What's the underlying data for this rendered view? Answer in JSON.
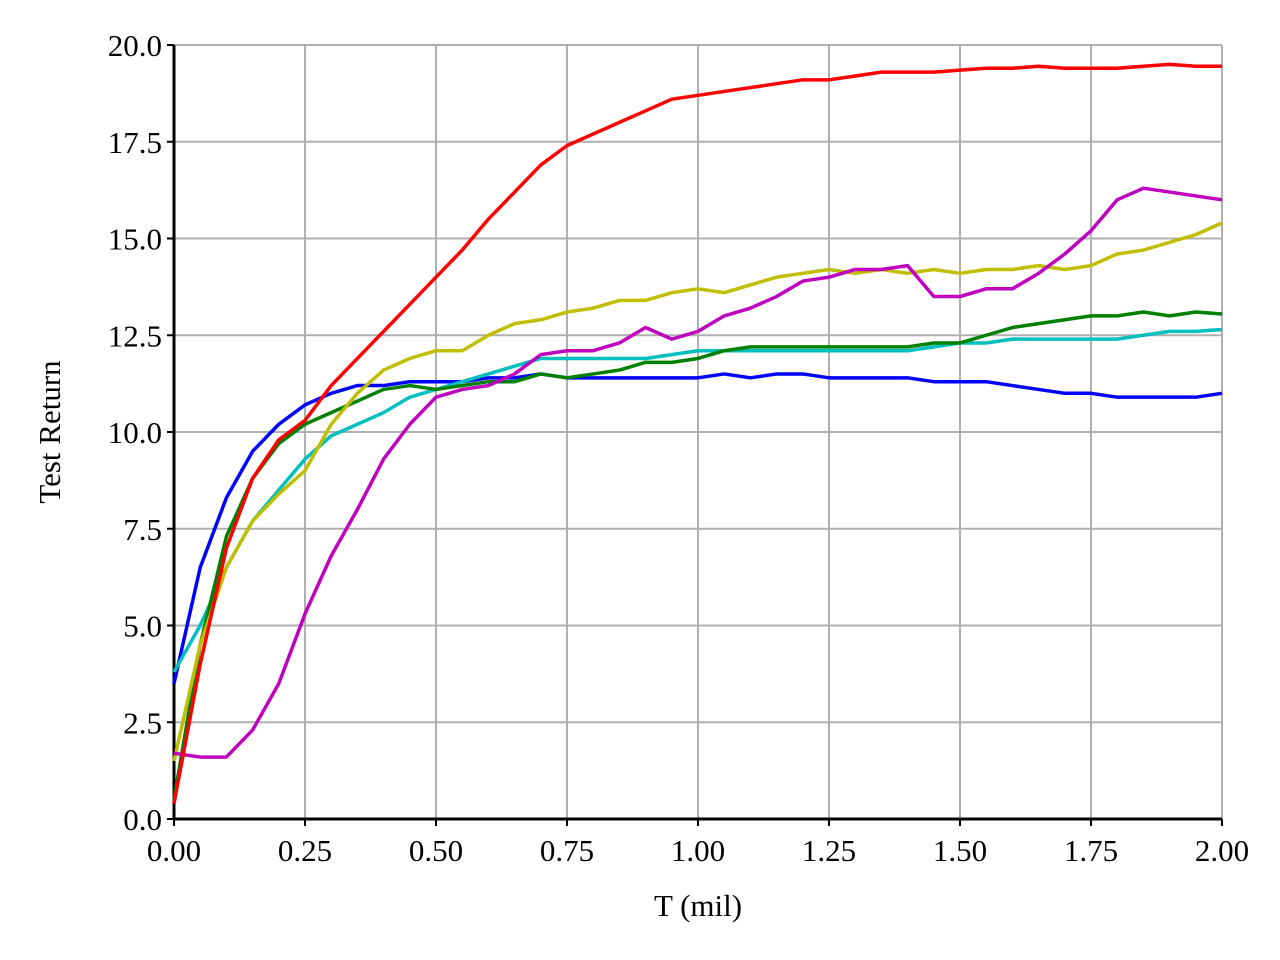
{
  "chart_data": {
    "type": "line",
    "xlabel": "T (mil)",
    "ylabel": "Test Return",
    "x": [
      0,
      0.05,
      0.1,
      0.15,
      0.2,
      0.25,
      0.3,
      0.35,
      0.4,
      0.45,
      0.5,
      0.55,
      0.6,
      0.65,
      0.7,
      0.75,
      0.8,
      0.85,
      0.9,
      0.95,
      1.0,
      1.05,
      1.1,
      1.15,
      1.2,
      1.25,
      1.3,
      1.35,
      1.4,
      1.45,
      1.5,
      1.55,
      1.6,
      1.65,
      1.7,
      1.75,
      1.8,
      1.85,
      1.9,
      1.95,
      2.0
    ],
    "series": [
      {
        "color": "#0000ff",
        "values": [
          3.5,
          6.5,
          8.3,
          9.5,
          10.2,
          10.7,
          11.0,
          11.2,
          11.2,
          11.3,
          11.3,
          11.3,
          11.4,
          11.4,
          11.5,
          11.4,
          11.4,
          11.4,
          11.4,
          11.4,
          11.4,
          11.5,
          11.4,
          11.5,
          11.5,
          11.4,
          11.4,
          11.4,
          11.4,
          11.3,
          11.3,
          11.3,
          11.2,
          11.1,
          11.0,
          11.0,
          10.9,
          10.9,
          10.9,
          10.9,
          11.0
        ]
      },
      {
        "color": "#00bfbf",
        "values": [
          3.8,
          5.0,
          6.5,
          7.7,
          8.5,
          9.3,
          9.9,
          10.2,
          10.5,
          10.9,
          11.1,
          11.3,
          11.5,
          11.7,
          11.9,
          11.9,
          11.9,
          11.9,
          11.9,
          12.0,
          12.1,
          12.1,
          12.1,
          12.1,
          12.1,
          12.1,
          12.1,
          12.1,
          12.1,
          12.2,
          12.3,
          12.3,
          12.4,
          12.4,
          12.4,
          12.4,
          12.4,
          12.5,
          12.6,
          12.6,
          12.65
        ]
      },
      {
        "color": "#008000",
        "values": [
          0.5,
          4.5,
          7.3,
          8.8,
          9.7,
          10.2,
          10.5,
          10.8,
          11.1,
          11.2,
          11.1,
          11.2,
          11.3,
          11.3,
          11.5,
          11.4,
          11.5,
          11.6,
          11.8,
          11.8,
          11.9,
          12.1,
          12.2,
          12.2,
          12.2,
          12.2,
          12.2,
          12.2,
          12.2,
          12.3,
          12.3,
          12.5,
          12.7,
          12.8,
          12.9,
          13.0,
          13.0,
          13.1,
          13.0,
          13.1,
          13.05
        ]
      },
      {
        "color": "#bfbf00",
        "values": [
          1.5,
          4.5,
          6.5,
          7.7,
          8.4,
          9.0,
          10.2,
          11.0,
          11.6,
          11.9,
          12.1,
          12.1,
          12.5,
          12.8,
          12.9,
          13.1,
          13.2,
          13.4,
          13.4,
          13.6,
          13.7,
          13.6,
          13.8,
          14.0,
          14.1,
          14.2,
          14.1,
          14.2,
          14.1,
          14.2,
          14.1,
          14.2,
          14.2,
          14.3,
          14.2,
          14.3,
          14.6,
          14.7,
          14.9,
          15.1,
          15.4
        ]
      },
      {
        "color": "#bf00bf",
        "values": [
          1.7,
          1.6,
          1.6,
          2.3,
          3.5,
          5.3,
          6.8,
          8.0,
          9.3,
          10.2,
          10.9,
          11.1,
          11.2,
          11.5,
          12.0,
          12.1,
          12.1,
          12.3,
          12.7,
          12.4,
          12.6,
          13.0,
          13.2,
          13.5,
          13.9,
          14.0,
          14.2,
          14.2,
          14.3,
          13.5,
          13.5,
          13.7,
          13.7,
          14.1,
          14.6,
          15.2,
          16.0,
          16.3,
          16.2,
          16.1,
          16.0
        ]
      },
      {
        "color": "#ff0000",
        "values": [
          0.4,
          4.0,
          7.0,
          8.8,
          9.8,
          10.3,
          11.2,
          11.9,
          12.6,
          13.3,
          14.0,
          14.7,
          15.5,
          16.2,
          16.9,
          17.4,
          17.7,
          18.0,
          18.3,
          18.6,
          18.7,
          18.8,
          18.9,
          19.0,
          19.1,
          19.1,
          19.2,
          19.3,
          19.3,
          19.3,
          19.35,
          19.4,
          19.4,
          19.45,
          19.4,
          19.4,
          19.4,
          19.45,
          19.5,
          19.45,
          19.45
        ]
      }
    ],
    "xlim": [
      0,
      2
    ],
    "ylim": [
      0,
      20
    ],
    "xticks": [
      {
        "value": 0,
        "label": "0.00"
      },
      0.25,
      {
        "value": 0.5,
        "label": "0.50"
      },
      0.75,
      {
        "value": 1,
        "label": "1.00"
      },
      1.25,
      {
        "value": 1.5,
        "label": "1.50"
      },
      1.75,
      {
        "value": 2,
        "label": "2.00"
      }
    ],
    "yticks": [
      {
        "value": 0,
        "label": "0.0"
      },
      2.5,
      {
        "value": 5,
        "label": "5.0"
      },
      7.5,
      {
        "value": 10,
        "label": "10.0"
      },
      12.5,
      {
        "value": 15,
        "label": "15.0"
      },
      17.5,
      {
        "value": 20,
        "label": "20.0"
      }
    ],
    "grid": true
  }
}
